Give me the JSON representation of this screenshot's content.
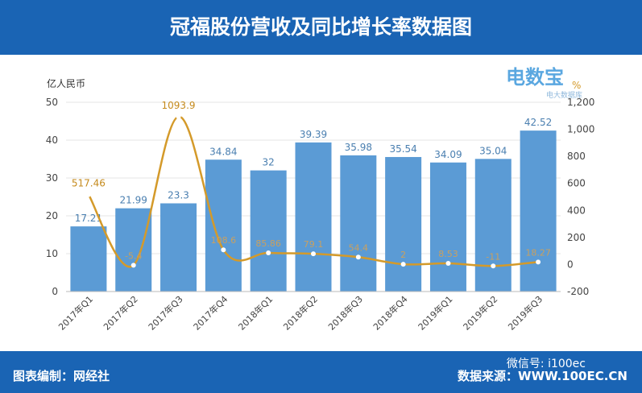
{
  "header": {
    "title": "冠福股份营收及同比增长率数据图"
  },
  "footer": {
    "left": "图表编制：网经社",
    "right": "数据来源：WWW.100EC.CN",
    "wechat": "微信号: i100ec"
  },
  "logo": {
    "name": "电数宝",
    "sub": "电大数据库"
  },
  "chart_data": {
    "type": "bar+line",
    "categories": [
      "2017年Q1",
      "2017年Q2",
      "2017年Q3",
      "2017年Q4",
      "2018年Q1",
      "2018年Q2",
      "2018年Q3",
      "2018年Q4",
      "2019年Q1",
      "2019年Q2",
      "2019年Q3"
    ],
    "series": [
      {
        "type": "bar",
        "axis": "left",
        "color": "#5b9bd5",
        "values": [
          17.21,
          21.99,
          23.3,
          34.84,
          32,
          39.39,
          35.98,
          35.54,
          34.09,
          35.04,
          42.52
        ],
        "labels": [
          "17.21",
          "21.99",
          "23.3",
          "34.84",
          "32",
          "39.39",
          "35.98",
          "35.54",
          "34.09",
          "35.04",
          "42.52"
        ]
      },
      {
        "type": "line",
        "axis": "right",
        "color": "#d49a2a",
        "values": [
          517.46,
          -5.4,
          1093.9,
          108.6,
          85.86,
          79.1,
          54.4,
          2,
          8.53,
          -11,
          18.27
        ],
        "labels": [
          "517.46",
          "-5.4",
          "1093.9",
          "108.6",
          "85.86",
          "79.1",
          "54.4",
          "2",
          "8.53",
          "-11",
          "18.27"
        ]
      }
    ],
    "ylabel": "亿人民币",
    "y2label": "%",
    "ylim": [
      0,
      50
    ],
    "yticks": [
      0,
      10,
      20,
      30,
      40,
      50
    ],
    "y2lim": [
      -200,
      1200
    ],
    "y2ticks": [
      "-200",
      "0",
      "200",
      "400",
      "600",
      "800",
      "1,000",
      "1,200"
    ],
    "grid": true
  }
}
